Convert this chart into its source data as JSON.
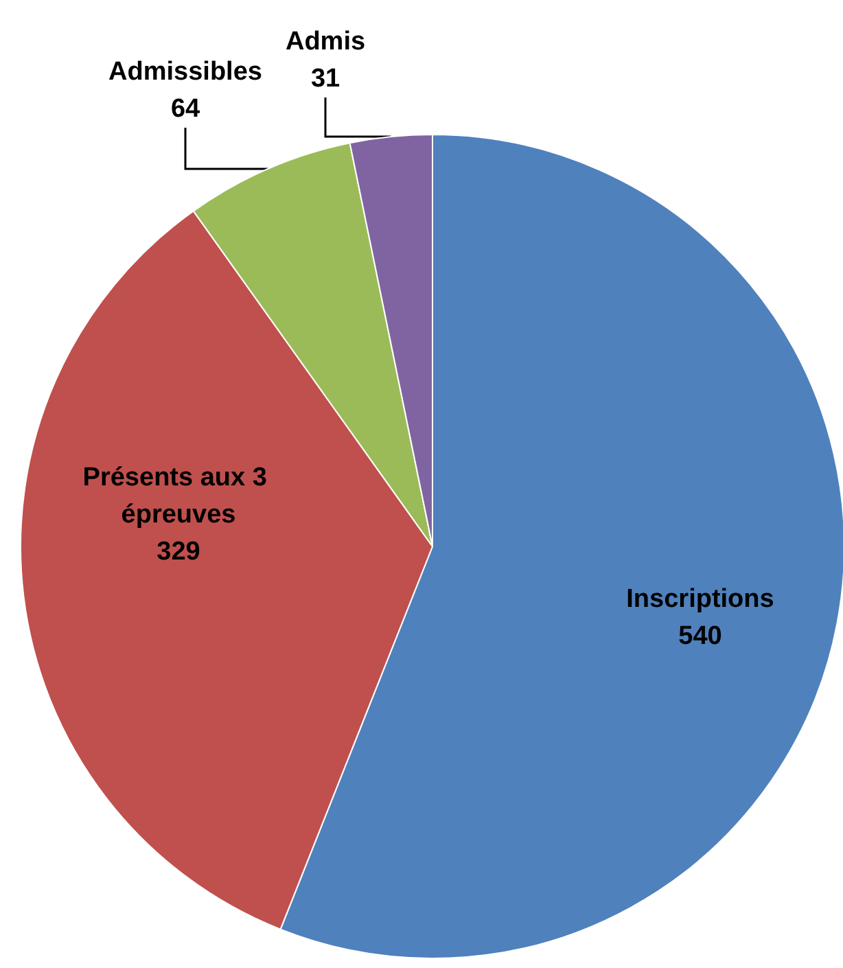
{
  "chart_data": {
    "type": "pie",
    "categories": [
      "Inscriptions",
      "Présents aux 3 épreuves",
      "Admissibles",
      "Admis"
    ],
    "values": [
      540,
      329,
      64,
      31
    ],
    "colors": [
      "#4f81bd",
      "#c0504d",
      "#9bbb59",
      "#8064a2"
    ],
    "data_labels": true,
    "legend": false
  }
}
